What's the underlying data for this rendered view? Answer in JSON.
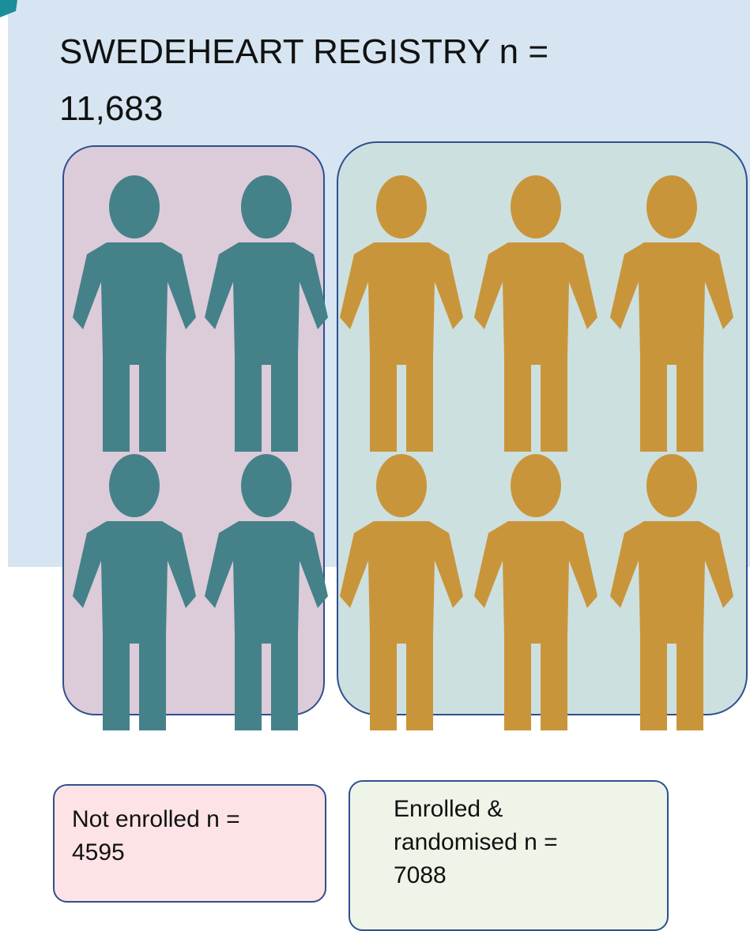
{
  "header": {
    "title": "SWEDEHEART REGISTRY n = 11,683"
  },
  "groups": [
    {
      "label": "Not enrolled n = 4595"
    },
    {
      "label": "Enrolled & randomised n = 7088"
    }
  ]
}
